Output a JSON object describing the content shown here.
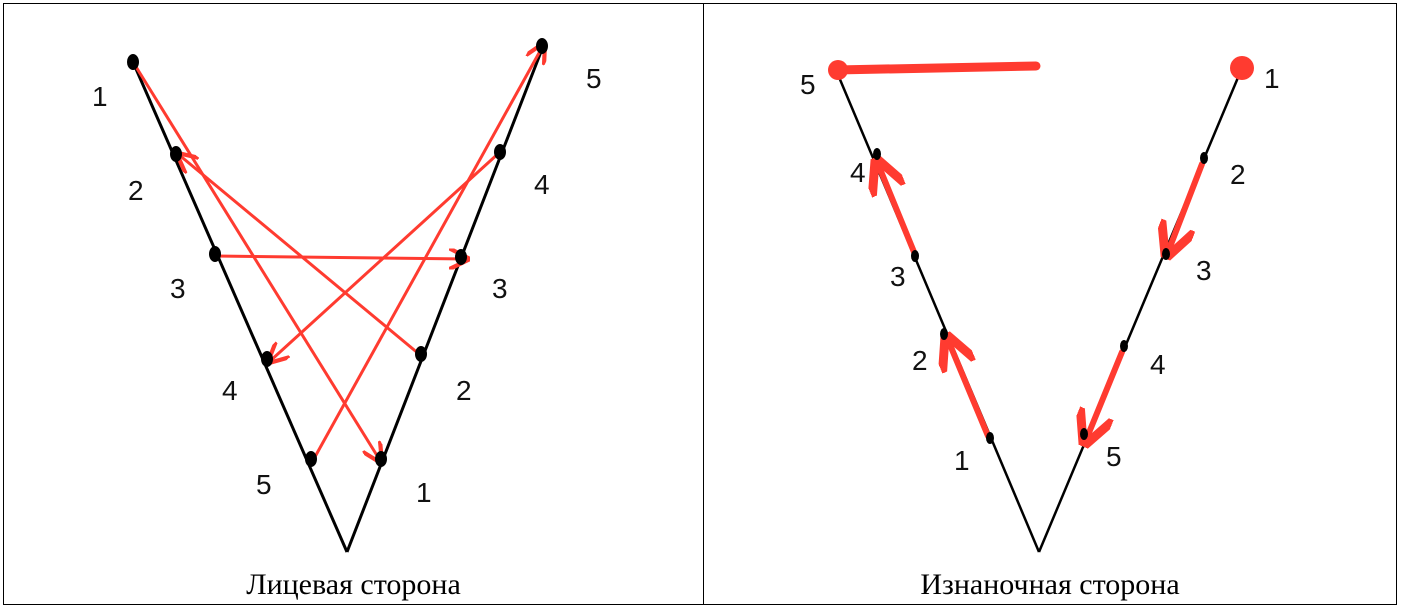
{
  "left_panel": {
    "caption": "Лицевая сторона",
    "left_labels": [
      "1",
      "2",
      "3",
      "4",
      "5"
    ],
    "right_labels": [
      "5",
      "4",
      "3",
      "2",
      "1"
    ]
  },
  "right_panel": {
    "caption": "Изнаночная сторона",
    "left_labels": [
      "5",
      "4",
      "3",
      "2",
      "1"
    ],
    "right_labels": [
      "1",
      "2",
      "3",
      "4",
      "5"
    ]
  },
  "colors": {
    "line": "#000000",
    "arrow": "#ff3b30",
    "dot": "#000000"
  }
}
